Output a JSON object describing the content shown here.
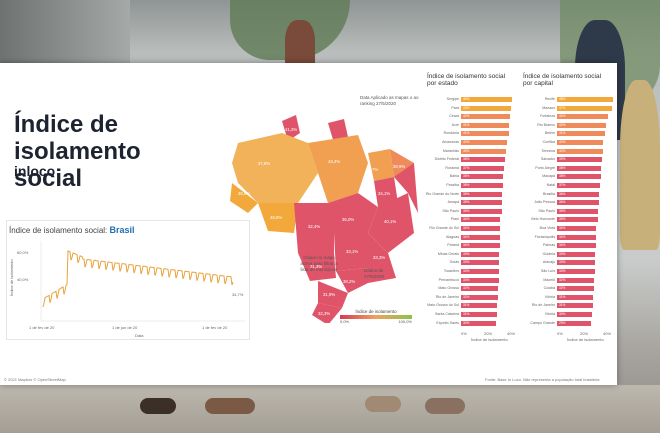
{
  "title": "Índice de isolamento social",
  "subtitle": "inloco",
  "linechart": {
    "label": "Índice de isolamento social:",
    "region": "Brasil",
    "ylabel": "Índice de isolamento",
    "xlabel": "Data",
    "yticks": [
      "60,0%",
      "40,0%"
    ],
    "xticks": [
      "1 de fev de 20",
      "1 de jun de 20",
      "1 de fev de 20"
    ],
    "last_value": "34,7%"
  },
  "map": {
    "note_top": "Data\nAplicado as mapas o ao ranking\n27/5/2020",
    "note_mid": "Clique no mapa acima para filtrar a lista de municípios",
    "note_bottom": "Dados de 27/5/2020",
    "legend_title": "Índice de isolamento",
    "legend_min": "0,0%",
    "legend_max": "100,0%",
    "values": [
      "41,3%",
      "37,8%",
      "43,4%",
      "36,7%",
      "38,9%",
      "38,8%",
      "48,8%",
      "34,1%",
      "32,4%",
      "36,0%",
      "40,1%",
      "33,1%",
      "33,3%",
      "31,3%",
      "38,2%",
      "31,9%",
      "32,3%",
      "33,2%",
      "34,3%"
    ]
  },
  "state_ranking": {
    "title": "Índice de isolamento social por estado",
    "axis_label": "Índice de isolamento",
    "ticks": [
      "0%",
      "20%",
      "40%"
    ],
    "labels": [
      "Sergipe",
      "Pará",
      "Ceará",
      "Acre",
      "Rondônia",
      "Amazonas",
      "Maranhão",
      "Distrito Federal",
      "Roraima",
      "Bahia",
      "Paraíba",
      "Rio Grande do Norte",
      "Amapá",
      "São Paulo",
      "Piauí",
      "Rio Grande do Sul",
      "Alagoas",
      "Paraná",
      "Minas Gerais",
      "Goiás",
      "Tocantins",
      "Pernambuco",
      "Mato Grosso",
      "Rio de Janeiro",
      "Mato Grosso do Sul",
      "Santa Catarina",
      "Espírito Santo"
    ],
    "values": [
      44,
      43,
      42,
      41,
      41,
      40,
      39,
      38,
      37,
      36,
      36,
      35,
      35,
      35,
      34,
      34,
      34,
      34,
      33,
      33,
      33,
      33,
      32,
      32,
      31,
      31,
      30
    ]
  },
  "capital_ranking": {
    "title": "Índice de isolamento social por capital",
    "axis_label": "Índice de isolamento",
    "ticks": [
      "0%",
      "20%",
      "40%"
    ],
    "labels": [
      "Recife",
      "Manaus",
      "Fortaleza",
      "Rio Branco",
      "Belém",
      "Curitiba",
      "Teresina",
      "Salvador",
      "Porto Alegre",
      "Macapá",
      "Natal",
      "Brasília",
      "João Pessoa",
      "São Paulo",
      "Belo Horizonte",
      "Boa Vista",
      "Florianópolis",
      "Palmas",
      "Goiânia",
      "Aracaju",
      "São Luís",
      "Maceió",
      "Cuiabá",
      "Vitória",
      "Rio de Janeiro",
      "Vitória",
      "Campo Grande"
    ],
    "values": [
      48,
      47,
      44,
      42,
      41,
      40,
      40,
      39,
      38,
      38,
      37,
      36,
      36,
      35,
      35,
      34,
      34,
      34,
      33,
      33,
      33,
      32,
      32,
      31,
      31,
      30,
      29
    ]
  },
  "footer_left": "© 2021 Mapbox © OpenStreetMap",
  "footer_right": "Fonte: Base In Loco. Não representa a população total brasileira",
  "colors": {
    "high": "#f2a83b",
    "mid": "#ef8a5a",
    "low": "#e0546a",
    "text": "#1d2430",
    "accent": "#1f6fb5"
  }
}
